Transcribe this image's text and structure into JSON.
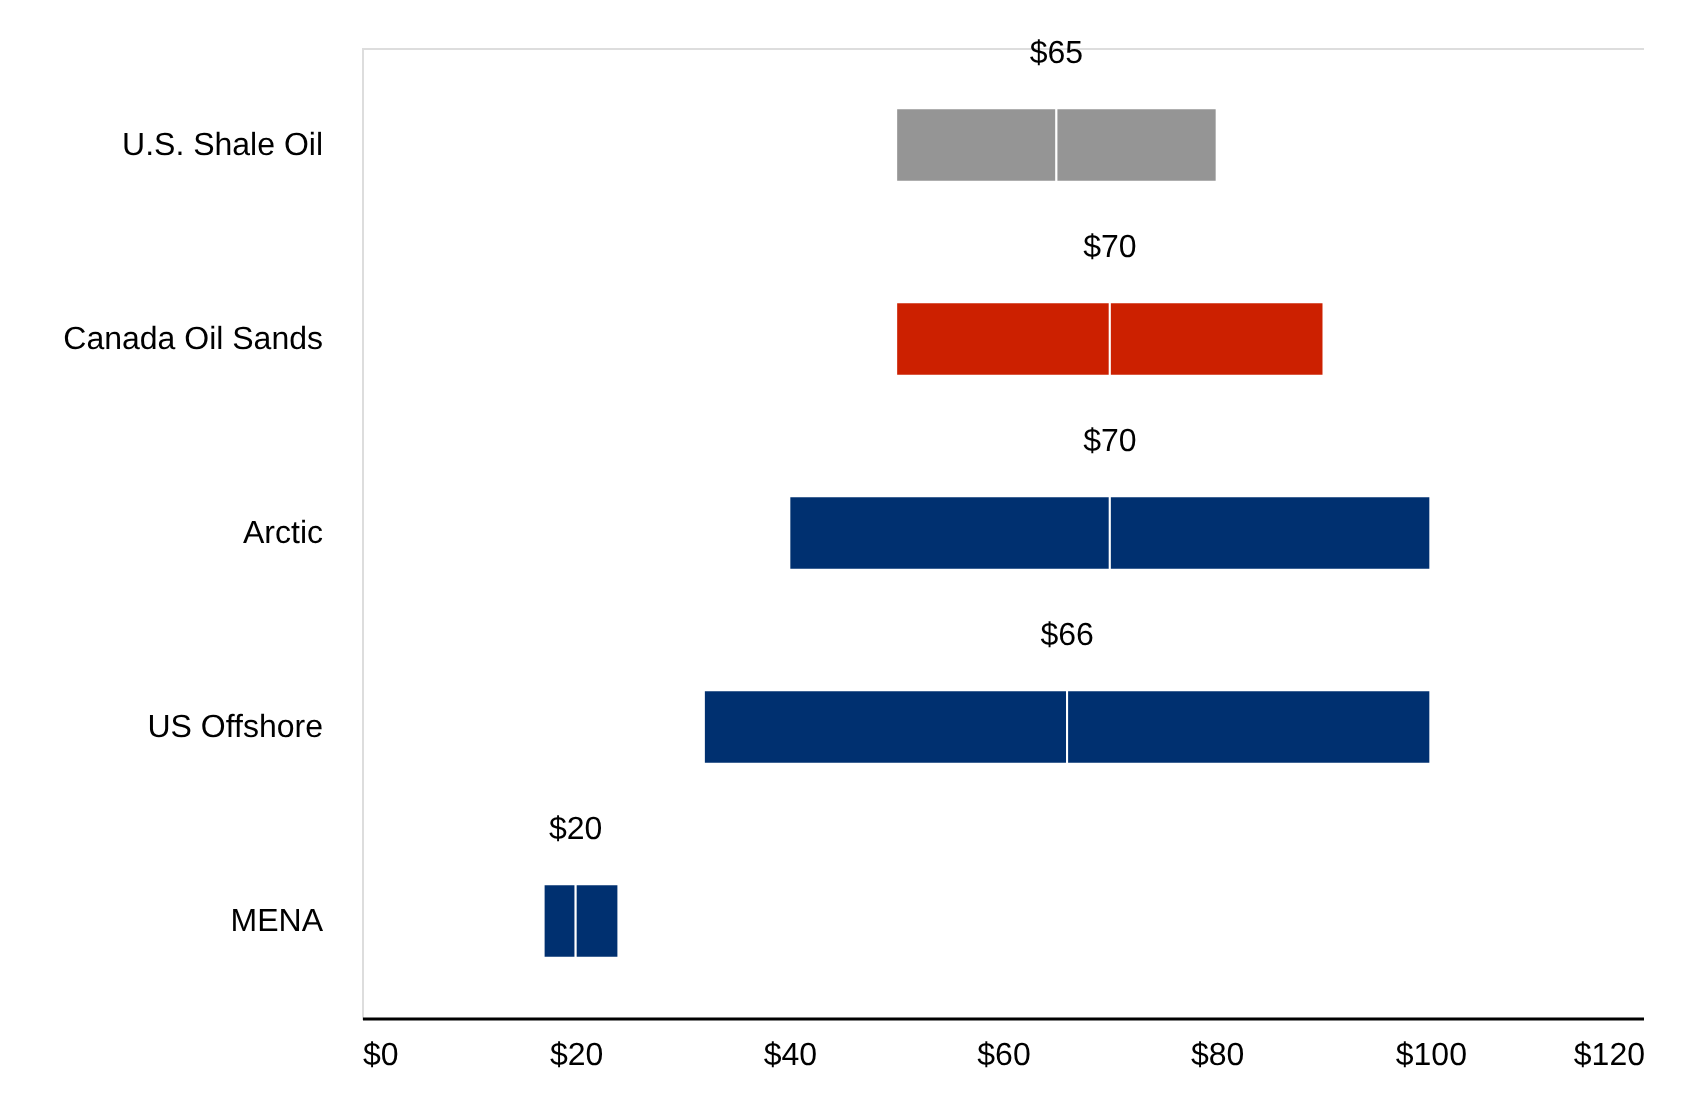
{
  "chart_data": {
    "type": "bar",
    "orientation": "horizontal",
    "categories": [
      "U.S. Shale Oil",
      "Canada Oil Sands",
      "Arctic",
      "US Offshore",
      "MENA"
    ],
    "series": [
      {
        "base": [
          50,
          50,
          40,
          32,
          17
        ],
        "values": [
          15,
          20,
          30,
          34,
          3
        ],
        "colors": [
          "#959595",
          "#cc2000",
          "#003070",
          "#003070",
          "#003070"
        ]
      },
      {
        "base": [
          65,
          70,
          70,
          66,
          20
        ],
        "values": [
          15,
          20,
          30,
          34,
          4
        ],
        "colors": [
          "#959595",
          "#cc2000",
          "#003070",
          "#003070",
          "#003070"
        ]
      }
    ],
    "annotations": [
      "$65",
      "$70",
      "$70",
      "$66",
      "$20"
    ],
    "xlim": [
      0,
      120
    ],
    "xticks": [
      {
        "value": 0,
        "label": "$0"
      },
      {
        "value": 20,
        "label": "$20"
      },
      {
        "value": 40,
        "label": "$40"
      },
      {
        "value": 60,
        "label": "$60"
      },
      {
        "value": 80,
        "label": "$80"
      },
      {
        "value": 100,
        "label": "$100"
      },
      {
        "value": 120,
        "label": "$120"
      }
    ],
    "grid": false
  }
}
